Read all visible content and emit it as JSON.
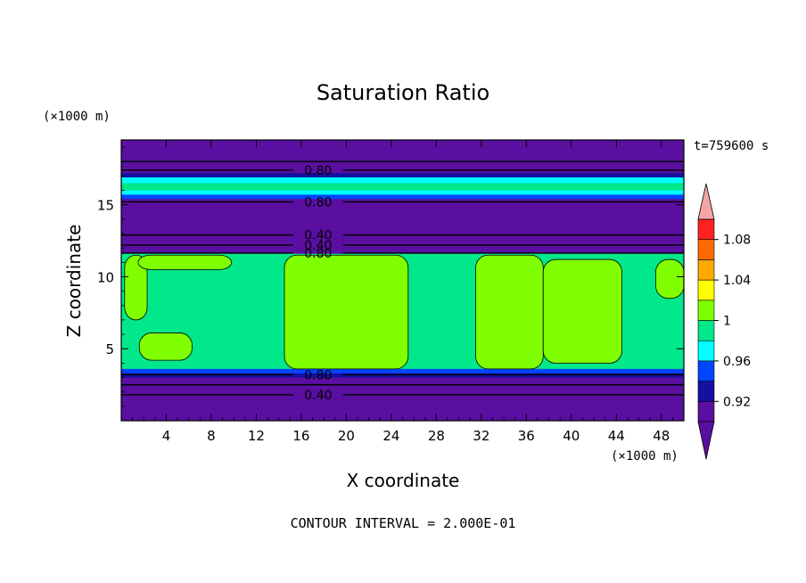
{
  "chart_data": {
    "type": "heatmap",
    "title": "Saturation Ratio",
    "xlabel": "X coordinate",
    "ylabel": "Z coordinate",
    "x_units": "(×1000 m)",
    "y_units": "(×1000 m)",
    "time_label": "t=759600 s",
    "footer": "CONTOUR INTERVAL = 2.000E-01",
    "xlim": [
      0,
      50
    ],
    "ylim": [
      0,
      19.5
    ],
    "x_ticks": [
      4,
      8,
      12,
      16,
      20,
      24,
      28,
      32,
      36,
      40,
      44,
      48
    ],
    "y_ticks": [
      5,
      10,
      15
    ],
    "grid": false,
    "colorbar": {
      "placement": "right",
      "labels": [
        "0.92",
        "0.96",
        "1",
        "1.04",
        "1.08"
      ],
      "label_values": [
        0.92,
        0.96,
        1.0,
        1.04,
        1.08
      ],
      "levels": [
        0.9,
        0.92,
        0.94,
        0.96,
        0.98,
        1.0,
        1.02,
        1.04,
        1.06,
        1.08,
        1.1
      ],
      "colors": [
        "#5a0fa0",
        "#1410a0",
        "#0046ff",
        "#00ffff",
        "#00e88a",
        "#80ff00",
        "#ffff00",
        "#ffaa00",
        "#ff6a00",
        "#ff2020"
      ],
      "under_color": "#5a0fa0",
      "over_color": "#f4a6a6"
    },
    "bands": [
      {
        "z0": 0.0,
        "z1": 3.0,
        "color": "#5a0fa0"
      },
      {
        "z0": 3.0,
        "z1": 3.3,
        "color": "#1410a0"
      },
      {
        "z0": 3.3,
        "z1": 3.6,
        "color": "#0046ff"
      },
      {
        "z0": 3.6,
        "z1": 11.6,
        "color": "#00e88a"
      },
      {
        "z0": 11.6,
        "z1": 15.4,
        "color": "#5a0fa0"
      },
      {
        "z0": 15.4,
        "z1": 15.7,
        "color": "#0046ff"
      },
      {
        "z0": 15.7,
        "z1": 16.0,
        "color": "#00ffff"
      },
      {
        "z0": 16.0,
        "z1": 16.5,
        "color": "#00e88a"
      },
      {
        "z0": 16.5,
        "z1": 16.9,
        "color": "#00ffff"
      },
      {
        "z0": 16.9,
        "z1": 17.2,
        "color": "#1410a0"
      },
      {
        "z0": 17.2,
        "z1": 19.5,
        "color": "#5a0fa0"
      }
    ],
    "patches": [
      {
        "x0": 0.3,
        "x1": 2.3,
        "z0": 7.0,
        "z1": 11.5,
        "color": "#80ff00"
      },
      {
        "x0": 1.5,
        "x1": 9.8,
        "z0": 10.5,
        "z1": 11.5,
        "color": "#80ff00"
      },
      {
        "x0": 1.6,
        "x1": 6.3,
        "z0": 4.2,
        "z1": 6.1,
        "color": "#80ff00"
      },
      {
        "x0": 14.5,
        "x1": 25.5,
        "z0": 3.6,
        "z1": 11.5,
        "color": "#80ff00"
      },
      {
        "x0": 31.5,
        "x1": 37.5,
        "z0": 3.6,
        "z1": 11.5,
        "color": "#80ff00"
      },
      {
        "x0": 37.5,
        "x1": 44.5,
        "z0": 4.0,
        "z1": 11.2,
        "color": "#80ff00"
      },
      {
        "x0": 47.5,
        "x1": 50.0,
        "z0": 8.5,
        "z1": 11.2,
        "color": "#80ff00"
      }
    ],
    "contour_lines": [
      {
        "z": 1.8,
        "label": "0.40",
        "label_x": 17.5
      },
      {
        "z": 2.5,
        "label": "",
        "label_x": null
      },
      {
        "z": 3.2,
        "label": "0.80",
        "label_x": 17.5
      },
      {
        "z": 11.65,
        "label": "0.80",
        "label_x": 17.5
      },
      {
        "z": 12.2,
        "label": "0.40",
        "label_x": 17.5
      },
      {
        "z": 12.9,
        "label": "0.40",
        "label_x": 17.5
      },
      {
        "z": 15.2,
        "label": "0.80",
        "label_x": 17.5
      },
      {
        "z": 17.4,
        "label": "0.80",
        "label_x": 17.5
      },
      {
        "z": 18.0,
        "label": "",
        "label_x": null
      }
    ]
  }
}
